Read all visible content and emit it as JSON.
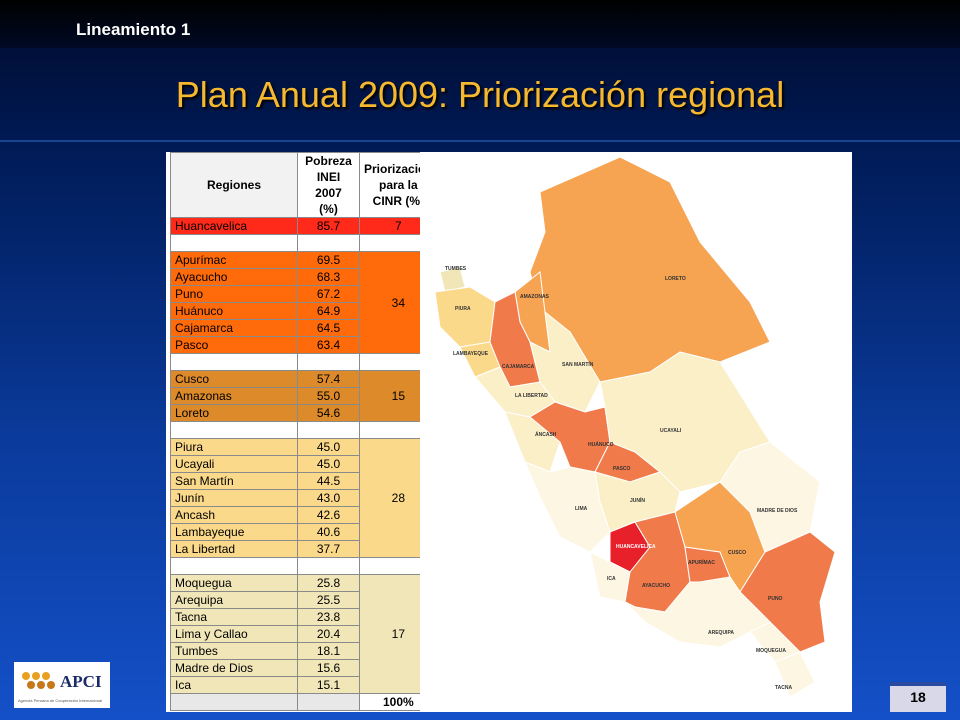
{
  "slide": {
    "lineamiento": "Lineamiento 1",
    "title": "Plan Anual 2009: Priorización regional",
    "page_number": "18"
  },
  "logo": {
    "text": "APCI",
    "subtitle": "Agencia Peruana de Cooperación Internacional"
  },
  "table": {
    "headers": {
      "region": "Regiones",
      "pobreza": [
        "Pobreza",
        "INEI 2007",
        "(%)"
      ],
      "priorizacion": [
        "Priorización",
        "para la",
        "CINR (%)"
      ]
    },
    "groups": [
      {
        "priority": "7",
        "color": "#ff2a1a",
        "rows": [
          {
            "region": "Huancavelica",
            "pobreza": "85.7"
          }
        ]
      },
      {
        "priority": "34",
        "color": "#ff6a0a",
        "rows": [
          {
            "region": "Apurímac",
            "pobreza": "69.5"
          },
          {
            "region": "Ayacucho",
            "pobreza": "68.3"
          },
          {
            "region": "Puno",
            "pobreza": "67.2"
          },
          {
            "region": "Huánuco",
            "pobreza": "64.9"
          },
          {
            "region": "Cajamarca",
            "pobreza": "64.5"
          },
          {
            "region": "Pasco",
            "pobreza": "63.4"
          }
        ]
      },
      {
        "priority": "15",
        "color": "#dd8a2a",
        "rows": [
          {
            "region": "Cusco",
            "pobreza": "57.4"
          },
          {
            "region": "Amazonas",
            "pobreza": "55.0"
          },
          {
            "region": "Loreto",
            "pobreza": "54.6"
          }
        ]
      },
      {
        "priority": "28",
        "color": "#fbd98a",
        "rows": [
          {
            "region": "Piura",
            "pobreza": "45.0"
          },
          {
            "region": "Ucayali",
            "pobreza": "45.0"
          },
          {
            "region": "San Martín",
            "pobreza": "44.5"
          },
          {
            "region": "Junín",
            "pobreza": "43.0"
          },
          {
            "region": "Ancash",
            "pobreza": "42.6"
          },
          {
            "region": "Lambayeque",
            "pobreza": "40.6"
          },
          {
            "region": "La Libertad",
            "pobreza": "37.7"
          }
        ]
      },
      {
        "priority": "17",
        "color": "#f1e6b8",
        "rows": [
          {
            "region": "Moquegua",
            "pobreza": "25.8"
          },
          {
            "region": "Arequipa",
            "pobreza": "25.5"
          },
          {
            "region": "Tacna",
            "pobreza": "23.8"
          },
          {
            "region": "Lima y Callao",
            "pobreza": "20.4"
          },
          {
            "region": "Tumbes",
            "pobreza": "18.1"
          },
          {
            "region": "Madre de Dios",
            "pobreza": "15.6"
          },
          {
            "region": "Ica",
            "pobreza": "15.1"
          }
        ]
      }
    ],
    "total": "100%"
  },
  "map": {
    "labels": [
      "TUMBES",
      "PIURA",
      "LAMBAYEQUE",
      "AMAZONAS",
      "CAJAMARCA",
      "LA LIBERTAD",
      "SAN MARTÍN",
      "LORETO",
      "ÁNCASH",
      "HUÁNUCO",
      "PASCO",
      "UCAYALI",
      "LIMA",
      "JUNÍN",
      "HUANCAVELICA",
      "ICA",
      "AYACUCHO",
      "APURÍMAC",
      "CUSCO",
      "MADRE DE DIOS",
      "PUNO",
      "AREQUIPA",
      "MOQUEGUA",
      "TACNA"
    ]
  }
}
